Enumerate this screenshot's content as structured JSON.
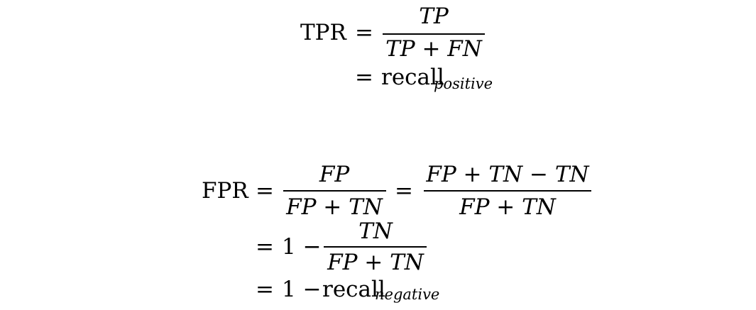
{
  "tpr": {
    "lhs": "TPR",
    "eq1": "=",
    "numerator": "TP",
    "denominator": "TP + FN",
    "eq2": "=",
    "recall_word": "recall",
    "recall_subscript": "positive"
  },
  "fpr": {
    "lhs": "FPR",
    "eq1": "=",
    "frac1_numerator": "FP",
    "frac1_denominator": "FP + TN",
    "eq2": "=",
    "frac2_numerator": "FP + TN − TN",
    "frac2_denominator": "FP + TN",
    "eq3": "=",
    "one_minus_a": "1 −",
    "frac3_numerator": "TN",
    "frac3_denominator": "FP + TN",
    "eq4": "=",
    "one_minus_b": "1 −",
    "recall_word": "recall",
    "recall_subscript": "negative"
  }
}
